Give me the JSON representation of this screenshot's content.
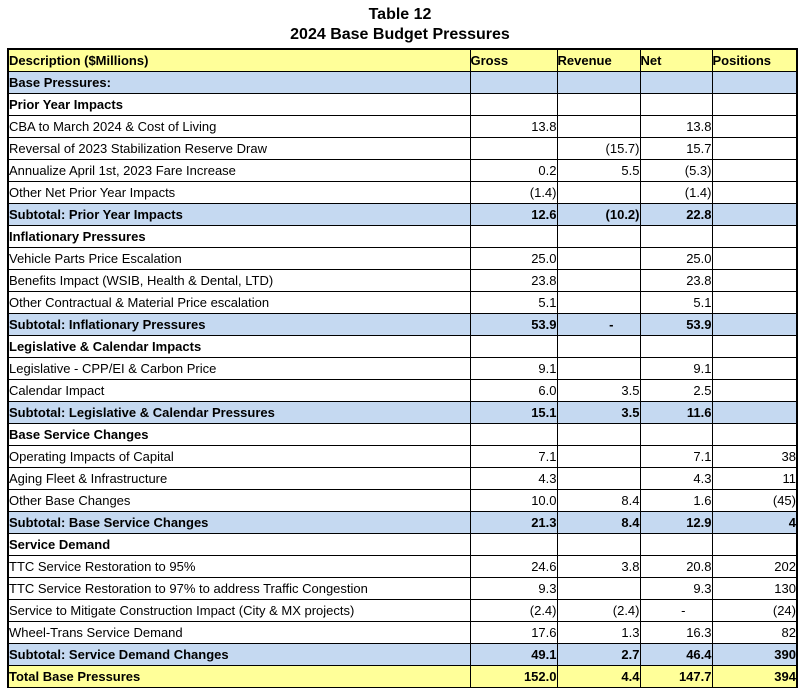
{
  "page": {
    "title_line1": "Table 12",
    "title_line2": "2024 Base Budget Pressures"
  },
  "colors": {
    "header_bg": "#FFFF99",
    "subtotal_bg": "#C5D9F1",
    "total_bg": "#FFFF99",
    "border": "#000000",
    "text": "#000000"
  },
  "table": {
    "columns": [
      "Description ($Millions)",
      "Gross",
      "Revenue",
      "Net",
      "Positions"
    ],
    "rows": [
      {
        "type": "base",
        "label": "Base Pressures:",
        "gross": "",
        "revenue": "",
        "net": "",
        "positions": ""
      },
      {
        "type": "section",
        "label": "Prior Year Impacts",
        "gross": "",
        "revenue": "",
        "net": "",
        "positions": ""
      },
      {
        "type": "detail",
        "label": "CBA to March 2024 & Cost of Living",
        "gross": "13.8",
        "revenue": "",
        "net": "13.8",
        "positions": ""
      },
      {
        "type": "detail",
        "label": "Reversal of 2023 Stabilization Reserve Draw",
        "gross": "",
        "revenue": "(15.7)",
        "net": "15.7",
        "positions": ""
      },
      {
        "type": "detail",
        "label": "Annualize April 1st, 2023 Fare Increase",
        "gross": "0.2",
        "revenue": "5.5",
        "net": "(5.3)",
        "positions": ""
      },
      {
        "type": "detail",
        "label": "Other Net Prior Year Impacts",
        "gross": "(1.4)",
        "revenue": "",
        "net": "(1.4)",
        "positions": ""
      },
      {
        "type": "subtotal",
        "label": "Subtotal: Prior Year Impacts",
        "gross": "12.6",
        "revenue": "(10.2)",
        "net": "22.8",
        "positions": ""
      },
      {
        "type": "section",
        "label": "Inflationary Pressures",
        "gross": "",
        "revenue": "",
        "net": "",
        "positions": ""
      },
      {
        "type": "detail",
        "label": "Vehicle Parts Price Escalation",
        "gross": "25.0",
        "revenue": "",
        "net": "25.0",
        "positions": ""
      },
      {
        "type": "detail",
        "label": "Benefits Impact (WSIB, Health & Dental, LTD)",
        "gross": "23.8",
        "revenue": "",
        "net": "23.8",
        "positions": ""
      },
      {
        "type": "detail",
        "label": "Other Contractual & Material Price escalation",
        "gross": "5.1",
        "revenue": "",
        "net": "5.1",
        "positions": ""
      },
      {
        "type": "subtotal",
        "label": "Subtotal: Inflationary Pressures",
        "gross": "53.9",
        "revenue": "-",
        "net": "53.9",
        "positions": ""
      },
      {
        "type": "section",
        "label": "Legislative & Calendar Impacts",
        "gross": "",
        "revenue": "",
        "net": "",
        "positions": ""
      },
      {
        "type": "detail",
        "label": "Legislative - CPP/EI & Carbon Price",
        "gross": "9.1",
        "revenue": "",
        "net": "9.1",
        "positions": ""
      },
      {
        "type": "detail",
        "label": "Calendar Impact",
        "gross": "6.0",
        "revenue": "3.5",
        "net": "2.5",
        "positions": ""
      },
      {
        "type": "subtotal",
        "label": "Subtotal: Legislative & Calendar Pressures",
        "gross": "15.1",
        "revenue": "3.5",
        "net": "11.6",
        "positions": ""
      },
      {
        "type": "section",
        "label": "Base Service Changes",
        "gross": "",
        "revenue": "",
        "net": "",
        "positions": ""
      },
      {
        "type": "detail",
        "label": "Operating Impacts of Capital",
        "gross": "7.1",
        "revenue": "",
        "net": "7.1",
        "positions": "38"
      },
      {
        "type": "detail",
        "label": "Aging Fleet & Infrastructure",
        "gross": "4.3",
        "revenue": "",
        "net": "4.3",
        "positions": "11"
      },
      {
        "type": "detail",
        "label": "Other Base Changes",
        "gross": "10.0",
        "revenue": "8.4",
        "net": "1.6",
        "positions": "(45)"
      },
      {
        "type": "subtotal",
        "label": "Subtotal: Base Service Changes",
        "gross": "21.3",
        "revenue": "8.4",
        "net": "12.9",
        "positions": "4"
      },
      {
        "type": "section",
        "label": "Service Demand",
        "gross": "",
        "revenue": "",
        "net": "",
        "positions": ""
      },
      {
        "type": "detail",
        "label": "TTC Service Restoration to 95%",
        "gross": "24.6",
        "revenue": "3.8",
        "net": "20.8",
        "positions": "202"
      },
      {
        "type": "detail",
        "label": "TTC Service Restoration to 97% to address Traffic Congestion",
        "gross": "9.3",
        "revenue": "",
        "net": "9.3",
        "positions": "130"
      },
      {
        "type": "detail",
        "label": "Service to Mitigate Construction Impact (City & MX projects)",
        "gross": "(2.4)",
        "revenue": "(2.4)",
        "net": "-",
        "positions": "(24)"
      },
      {
        "type": "detail",
        "label": "Wheel-Trans Service Demand",
        "gross": "17.6",
        "revenue": "1.3",
        "net": "16.3",
        "positions": "82"
      },
      {
        "type": "subtotal",
        "label": "Subtotal: Service Demand Changes",
        "gross": "49.1",
        "revenue": "2.7",
        "net": "46.4",
        "positions": "390"
      },
      {
        "type": "total",
        "label": "Total Base Pressures",
        "gross": "152.0",
        "revenue": "4.4",
        "net": "147.7",
        "positions": "394"
      }
    ]
  }
}
